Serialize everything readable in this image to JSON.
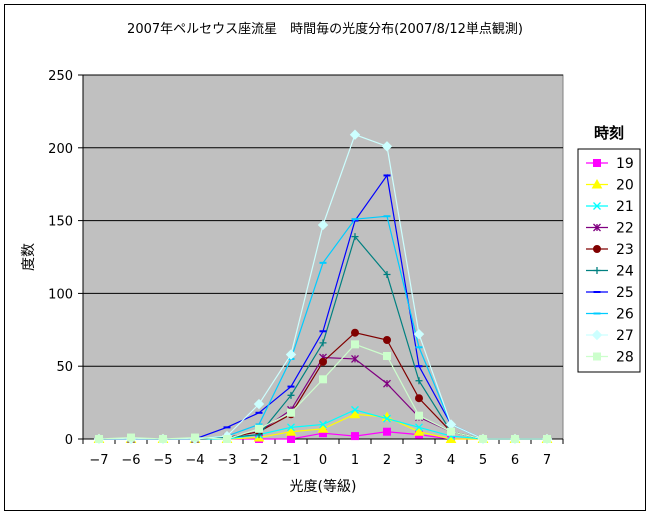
{
  "chart_data": {
    "type": "line",
    "title": "2007年ペルセウス座流星　時間毎の光度分布(2007/8/12単点観測)",
    "xlabel": "光度(等級)",
    "ylabel": "度数",
    "x": [
      -7,
      -6,
      -5,
      -4,
      -3,
      -2,
      -1,
      0,
      1,
      2,
      3,
      4,
      5,
      6,
      7
    ],
    "xlim": [
      -7,
      7
    ],
    "ylim": [
      0,
      250
    ],
    "yticks": [
      0,
      50,
      100,
      150,
      200,
      250
    ],
    "grid": true,
    "legend_title": "時刻",
    "legend_position": "right",
    "plot_background": "#c0c0c0",
    "series": [
      {
        "name": "19",
        "color": "#ff00ff",
        "marker": "square",
        "values": [
          0,
          0,
          0,
          0,
          0,
          0,
          0,
          4,
          2,
          5,
          3,
          0,
          0,
          0,
          0
        ]
      },
      {
        "name": "20",
        "color": "#ffff00",
        "marker": "triangle",
        "values": [
          0,
          0,
          0,
          0,
          0,
          1,
          5,
          7,
          17,
          15,
          5,
          0,
          0,
          0,
          0
        ]
      },
      {
        "name": "21",
        "color": "#00ffff",
        "marker": "x",
        "values": [
          0,
          0,
          0,
          0,
          0,
          3,
          8,
          10,
          20,
          14,
          8,
          2,
          0,
          0,
          0
        ]
      },
      {
        "name": "22",
        "color": "#800080",
        "marker": "star",
        "values": [
          0,
          0,
          0,
          0,
          1,
          5,
          20,
          56,
          55,
          38,
          15,
          5,
          0,
          0,
          0
        ]
      },
      {
        "name": "23",
        "color": "#800000",
        "marker": "circle",
        "values": [
          0,
          0,
          0,
          0,
          1,
          5,
          17,
          53,
          73,
          68,
          28,
          5,
          0,
          0,
          0
        ]
      },
      {
        "name": "24",
        "color": "#008080",
        "marker": "plus",
        "values": [
          0,
          0,
          0,
          0,
          1,
          3,
          30,
          66,
          139,
          113,
          40,
          5,
          0,
          0,
          0
        ]
      },
      {
        "name": "25",
        "color": "#0000ff",
        "marker": "dash",
        "values": [
          0,
          0,
          0,
          0,
          8,
          18,
          36,
          74,
          150,
          181,
          50,
          10,
          0,
          0,
          0
        ]
      },
      {
        "name": "26",
        "color": "#00ccff",
        "marker": "dash",
        "values": [
          0,
          0,
          0,
          0,
          2,
          10,
          55,
          121,
          151,
          153,
          63,
          10,
          0,
          0,
          0
        ]
      },
      {
        "name": "27",
        "color": "#ccffff",
        "marker": "diamond",
        "values": [
          0,
          0,
          0,
          0,
          2,
          24,
          58,
          147,
          209,
          201,
          72,
          10,
          0,
          0,
          0
        ]
      },
      {
        "name": "28",
        "color": "#ccffcc",
        "marker": "square",
        "values": [
          0,
          1,
          0,
          1,
          0,
          7,
          18,
          41,
          65,
          57,
          16,
          5,
          0,
          0,
          0
        ]
      }
    ]
  }
}
